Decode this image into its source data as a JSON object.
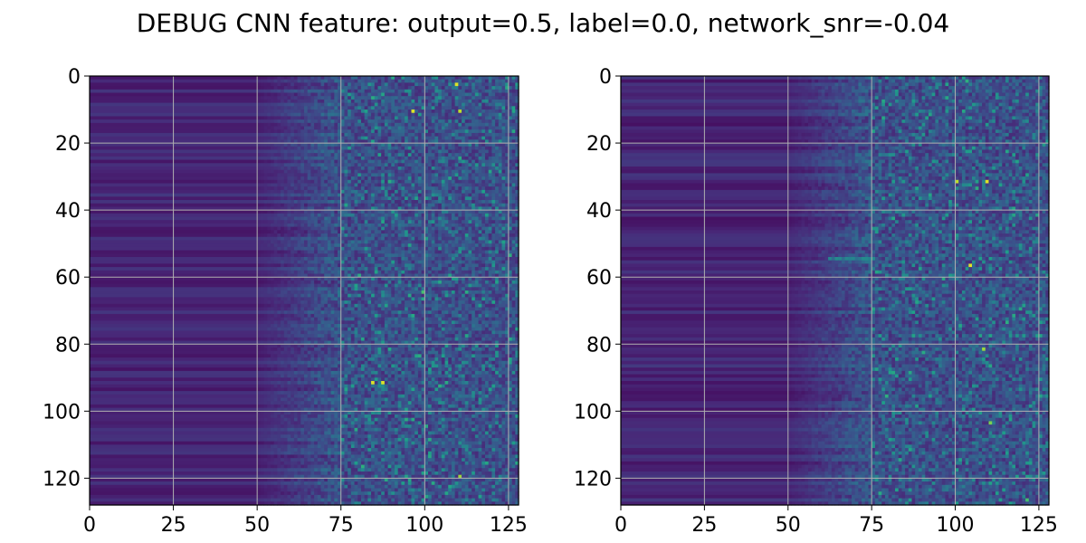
{
  "title": "DEBUG CNN feature: output=0.5, label=0.0, network_snr=-0.04",
  "colors": {
    "colormap": "viridis",
    "grid": "#b0b0b0",
    "frame": "#000000",
    "background": "#ffffff"
  },
  "chart_data": [
    {
      "type": "heatmap",
      "title": "",
      "xlabel": "",
      "ylabel": "",
      "xlim": [
        0,
        128
      ],
      "ylim": [
        128,
        0
      ],
      "rows": 128,
      "cols": 128,
      "xticks": [
        0,
        25,
        50,
        75,
        100,
        125
      ],
      "yticks": [
        0,
        20,
        40,
        60,
        80,
        100,
        120
      ],
      "grid": true,
      "colormap": "viridis",
      "value_range": [
        0,
        1
      ],
      "structure": {
        "columns_0_to_50": "uniform horizontal banding per row, values approx 0.05-0.15",
        "columns_50_to_75": "transition region, values approx 0.1-0.3 with row banding",
        "columns_75_to_128": "noisy speckle, values approx 0.1-0.6"
      },
      "highlights": [
        {
          "x": 109,
          "y": 2,
          "value": 0.95
        },
        {
          "x": 96,
          "y": 10,
          "value": 0.95
        },
        {
          "x": 110,
          "y": 10,
          "value": 0.9
        },
        {
          "x": 84,
          "y": 91,
          "value": 0.95
        },
        {
          "x": 87,
          "y": 91,
          "value": 0.95
        },
        {
          "x": 99,
          "y": 64,
          "value": 0.7
        },
        {
          "x": 110,
          "y": 119,
          "value": 0.85
        }
      ]
    },
    {
      "type": "heatmap",
      "title": "",
      "xlabel": "",
      "ylabel": "",
      "xlim": [
        0,
        128
      ],
      "ylim": [
        128,
        0
      ],
      "rows": 128,
      "cols": 128,
      "xticks": [
        0,
        25,
        50,
        75,
        100,
        125
      ],
      "yticks": [
        0,
        20,
        40,
        60,
        80,
        100,
        120
      ],
      "grid": true,
      "colormap": "viridis",
      "value_range": [
        0,
        1
      ],
      "structure": {
        "columns_0_to_50": "uniform horizontal banding per row, values approx 0.05-0.15",
        "columns_50_to_75": "transition region with bright streak near row 54",
        "columns_75_to_128": "noisy speckle, values approx 0.1-0.6"
      },
      "highlights": [
        {
          "x": 100,
          "y": 31,
          "value": 0.9
        },
        {
          "x": 109,
          "y": 31,
          "value": 0.95
        },
        {
          "x": 104,
          "y": 56,
          "value": 0.95
        },
        {
          "x": 108,
          "y": 81,
          "value": 0.85
        },
        {
          "x": 110,
          "y": 103,
          "value": 0.8
        },
        {
          "x": 121,
          "y": 126,
          "value": 0.7
        }
      ]
    }
  ]
}
